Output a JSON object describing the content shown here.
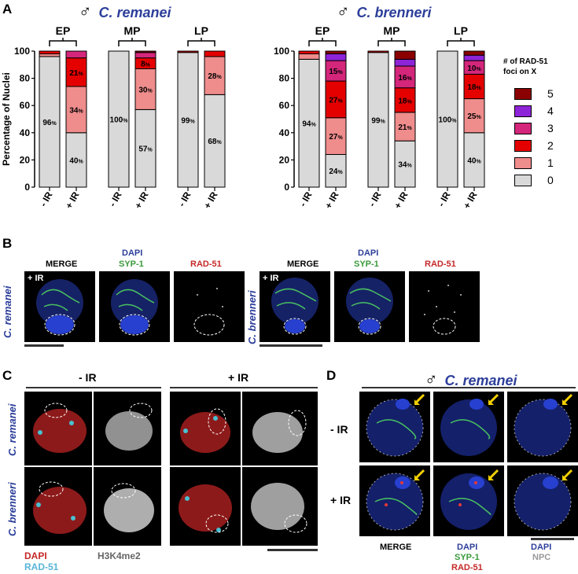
{
  "panel_labels": {
    "a": "A",
    "b": "B",
    "c": "C",
    "d": "D"
  },
  "male_symbol": "♂",
  "colors": {
    "species_blue": "#2c3e9a",
    "grey_dapi": "#888888",
    "c0": "#d9d9d9",
    "c1": "#ef8c8c",
    "c2": "#e50000",
    "c3": "#d4267a",
    "c4": "#8e24d8",
    "c5": "#8b0000"
  },
  "species": {
    "remanei": "C. remanei",
    "brenneri": "C. brenneri"
  },
  "chart_data": [
    {
      "type": "bar",
      "stacked": true,
      "title": "C. remanei",
      "ylabel": "Percentage of Nuclei",
      "ylim": [
        0,
        100
      ],
      "yticks": [
        "0",
        "20",
        "40",
        "60",
        "80",
        "100"
      ],
      "groups": [
        "EP",
        "MP",
        "LP"
      ],
      "categories": [
        "- IR",
        "+ IR",
        "- IR",
        "+ IR",
        "- IR",
        "+ IR"
      ],
      "series": [
        {
          "name": "0",
          "values": [
            96,
            40,
            100,
            57,
            99,
            68
          ]
        },
        {
          "name": "1",
          "values": [
            2,
            34,
            0,
            30,
            0,
            28
          ]
        },
        {
          "name": "2",
          "values": [
            2,
            21,
            0,
            8,
            1,
            4
          ]
        },
        {
          "name": "3",
          "values": [
            0,
            5,
            0,
            4,
            0,
            0
          ]
        },
        {
          "name": "4",
          "values": [
            0,
            0,
            0,
            0,
            0,
            0
          ]
        },
        {
          "name": "5",
          "values": [
            0,
            0,
            0,
            1,
            0,
            0
          ]
        }
      ],
      "labels": [
        [
          0,
          "0",
          "96"
        ],
        [
          1,
          "0",
          "40"
        ],
        [
          1,
          "1",
          "34"
        ],
        [
          1,
          "2",
          "21"
        ],
        [
          2,
          "0",
          "100"
        ],
        [
          3,
          "0",
          "57"
        ],
        [
          3,
          "1",
          "30"
        ],
        [
          3,
          "2",
          "8"
        ],
        [
          4,
          "0",
          "99"
        ],
        [
          5,
          "0",
          "68"
        ],
        [
          5,
          "1",
          "28"
        ]
      ]
    },
    {
      "type": "bar",
      "stacked": true,
      "title": "C. brenneri",
      "ylabel": "",
      "ylim": [
        0,
        100
      ],
      "yticks": [
        "0",
        "20",
        "40",
        "60",
        "80",
        "100"
      ],
      "groups": [
        "EP",
        "MP",
        "LP"
      ],
      "categories": [
        "- IR",
        "+ IR",
        "- IR",
        "+ IR",
        "- IR",
        "+ IR"
      ],
      "series": [
        {
          "name": "0",
          "values": [
            94,
            24,
            99,
            34,
            100,
            40
          ]
        },
        {
          "name": "1",
          "values": [
            4,
            27,
            0,
            21,
            0,
            25
          ]
        },
        {
          "name": "2",
          "values": [
            2,
            27,
            1,
            18,
            0,
            18
          ]
        },
        {
          "name": "3",
          "values": [
            0,
            15,
            0,
            16,
            0,
            10
          ]
        },
        {
          "name": "4",
          "values": [
            0,
            5,
            0,
            5,
            0,
            4
          ]
        },
        {
          "name": "5",
          "values": [
            0,
            2,
            0,
            6,
            0,
            3
          ]
        }
      ],
      "labels": [
        [
          0,
          "0",
          "94"
        ],
        [
          1,
          "0",
          "24"
        ],
        [
          1,
          "1",
          "27"
        ],
        [
          1,
          "2",
          "27"
        ],
        [
          1,
          "3",
          "15"
        ],
        [
          2,
          "0",
          "99"
        ],
        [
          3,
          "0",
          "34"
        ],
        [
          3,
          "1",
          "21"
        ],
        [
          3,
          "2",
          "18"
        ],
        [
          3,
          "3",
          "16"
        ],
        [
          4,
          "0",
          "100"
        ],
        [
          5,
          "0",
          "40"
        ],
        [
          5,
          "1",
          "25"
        ],
        [
          5,
          "2",
          "18"
        ],
        [
          5,
          "3",
          "10"
        ]
      ]
    }
  ],
  "legend": {
    "title_line1": "# of RAD-51",
    "title_line2": "foci on X",
    "items": [
      {
        "name": "5",
        "color": "#8b0000"
      },
      {
        "name": "4",
        "color": "#8e24d8"
      },
      {
        "name": "3",
        "color": "#d4267a"
      },
      {
        "name": "2",
        "color": "#e50000"
      },
      {
        "name": "1",
        "color": "#ef8c8c"
      },
      {
        "name": "0",
        "color": "#d9d9d9"
      }
    ]
  },
  "percent_sign": "%",
  "panel_b": {
    "merge": "MERGE",
    "dapi": "DAPI",
    "syp1": "SYP-1",
    "rad51": "RAD-51",
    "ir_tag": "+ IR"
  },
  "panel_c": {
    "minus_ir": "- IR",
    "plus_ir": "+ IR",
    "dapi": "DAPI",
    "rad51": "RAD-51",
    "h3k4": "H3K4me2"
  },
  "panel_d": {
    "minus_ir": "- IR",
    "plus_ir": "+ IR",
    "merge": "MERGE",
    "dapi": "DAPI",
    "syp1": "SYP-1",
    "rad51": "RAD-51",
    "npc": "NPC"
  }
}
